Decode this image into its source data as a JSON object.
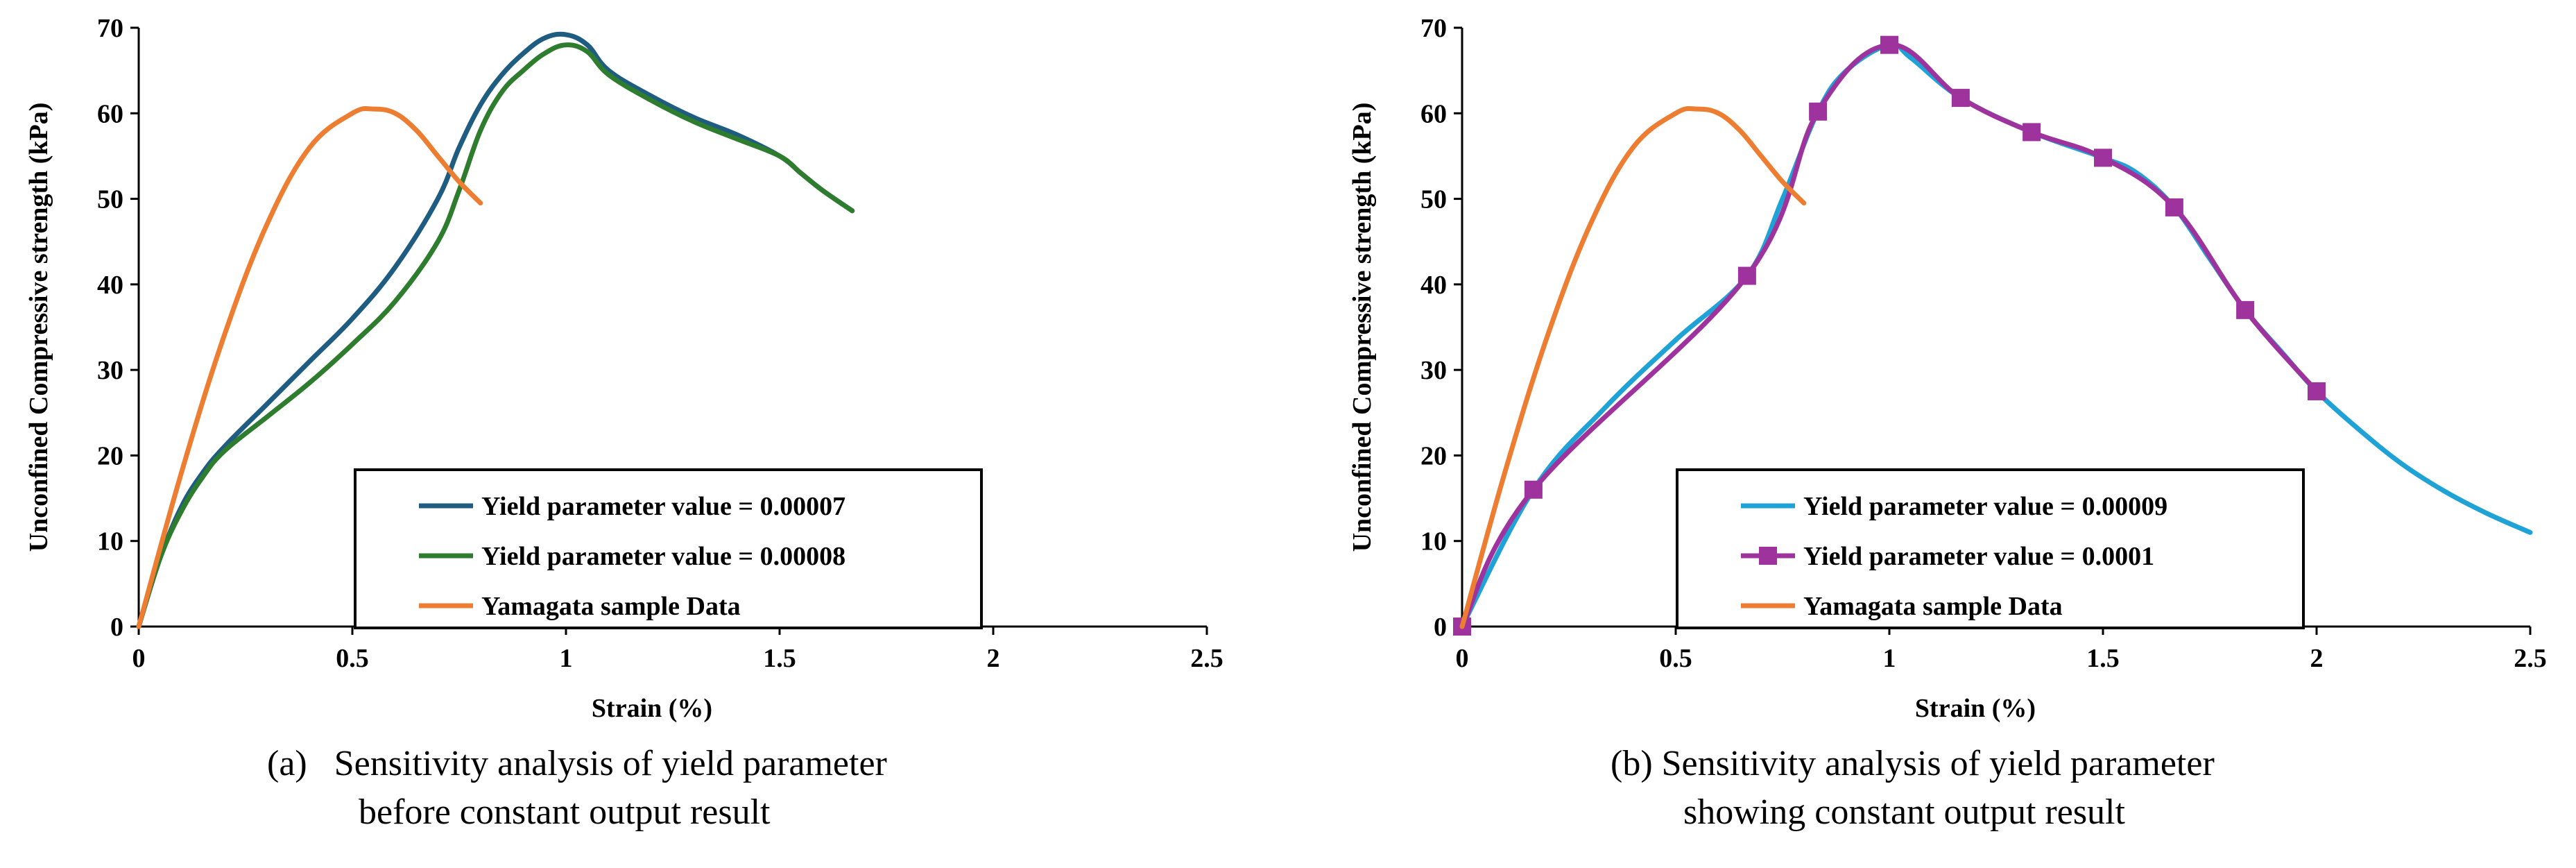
{
  "chart_data": [
    {
      "type": "line",
      "xlabel": "Strain (%)",
      "ylabel": "Unconfined Compressive strength (kPa)",
      "xlim": [
        0,
        2.5
      ],
      "ylim": [
        0,
        70
      ],
      "xticks": [
        "0",
        "0.5",
        "1",
        "1.5",
        "2",
        "2.5"
      ],
      "yticks": [
        "0",
        "10",
        "20",
        "30",
        "40",
        "50",
        "60",
        "70"
      ],
      "grid": false,
      "legend_position": "bottom-center",
      "caption_line1": "(a)   Sensitivity analysis of yield parameter",
      "caption_line2": "before constant output result",
      "series": [
        {
          "name": "Yield parameter value = 0.00007",
          "color": "#1f5c82",
          "markers": false,
          "points": [
            [
              0,
              0
            ],
            [
              0.05,
              8
            ],
            [
              0.1,
              14
            ],
            [
              0.15,
              18
            ],
            [
              0.2,
              21
            ],
            [
              0.3,
              26
            ],
            [
              0.4,
              31
            ],
            [
              0.5,
              36
            ],
            [
              0.6,
              42
            ],
            [
              0.7,
              50
            ],
            [
              0.75,
              56
            ],
            [
              0.8,
              61
            ],
            [
              0.85,
              64.5
            ],
            [
              0.9,
              67
            ],
            [
              0.95,
              68.8
            ],
            [
              1.0,
              69.2
            ],
            [
              1.05,
              68
            ],
            [
              1.1,
              65
            ],
            [
              1.2,
              62
            ],
            [
              1.3,
              59.5
            ],
            [
              1.4,
              57.5
            ],
            [
              1.5,
              55
            ],
            [
              1.55,
              53
            ],
            [
              1.6,
              51
            ],
            [
              1.67,
              48.6
            ]
          ]
        },
        {
          "name": "Yield parameter value = 0.00008",
          "color": "#2e7d2e",
          "markers": false,
          "points": [
            [
              0,
              0
            ],
            [
              0.05,
              8
            ],
            [
              0.1,
              13.5
            ],
            [
              0.15,
              17.5
            ],
            [
              0.2,
              20.5
            ],
            [
              0.3,
              24.5
            ],
            [
              0.4,
              28.5
            ],
            [
              0.5,
              33
            ],
            [
              0.6,
              38
            ],
            [
              0.7,
              45
            ],
            [
              0.75,
              51
            ],
            [
              0.8,
              58
            ],
            [
              0.85,
              62.5
            ],
            [
              0.9,
              65
            ],
            [
              0.95,
              67
            ],
            [
              1.0,
              68
            ],
            [
              1.05,
              67.2
            ],
            [
              1.1,
              64.5
            ],
            [
              1.2,
              61.5
            ],
            [
              1.3,
              59
            ],
            [
              1.4,
              57
            ],
            [
              1.5,
              55
            ],
            [
              1.55,
              53
            ],
            [
              1.6,
              51
            ],
            [
              1.67,
              48.6
            ]
          ]
        },
        {
          "name": "Yamagata sample Data",
          "color": "#ed7d31",
          "markers": false,
          "points": [
            [
              0,
              0
            ],
            [
              0.1,
              18
            ],
            [
              0.2,
              34
            ],
            [
              0.3,
              47
            ],
            [
              0.4,
              56
            ],
            [
              0.5,
              60
            ],
            [
              0.55,
              60.5
            ],
            [
              0.6,
              60
            ],
            [
              0.65,
              58
            ],
            [
              0.7,
              55
            ],
            [
              0.75,
              52
            ],
            [
              0.8,
              49.5
            ]
          ]
        }
      ]
    },
    {
      "type": "line",
      "xlabel": "Strain (%)",
      "ylabel": "Unconfined Compressive strength (kPa)",
      "xlim": [
        0,
        2.5
      ],
      "ylim": [
        0,
        70
      ],
      "xticks": [
        "0",
        "0.5",
        "1",
        "1.5",
        "2",
        "2.5"
      ],
      "yticks": [
        "0",
        "10",
        "20",
        "30",
        "40",
        "50",
        "60",
        "70"
      ],
      "grid": false,
      "legend_position": "bottom-center",
      "caption_line1": "(b) Sensitivity analysis of yield parameter",
      "caption_line2": "showing constant output result",
      "series": [
        {
          "name": "Yield parameter value = 0.00009",
          "color": "#1fa2d6",
          "markers": false,
          "points": [
            [
              0,
              0
            ],
            [
              0.167,
              16
            ],
            [
              0.333,
              25.5
            ],
            [
              0.5,
              33.5
            ],
            [
              0.667,
              41
            ],
            [
              0.75,
              50
            ],
            [
              0.833,
              60.2
            ],
            [
              0.9,
              65
            ],
            [
              1.0,
              68
            ],
            [
              1.05,
              66.5
            ],
            [
              1.167,
              61.8
            ],
            [
              1.333,
              57.8
            ],
            [
              1.5,
              54.8
            ],
            [
              1.58,
              53
            ],
            [
              1.667,
              49
            ],
            [
              1.75,
              43
            ],
            [
              1.833,
              37
            ],
            [
              1.92,
              32
            ],
            [
              2.0,
              27.5
            ],
            [
              2.1,
              23
            ],
            [
              2.2,
              19
            ],
            [
              2.3,
              15.8
            ],
            [
              2.4,
              13.2
            ],
            [
              2.5,
              11
            ]
          ]
        },
        {
          "name": "Yield parameter value = 0.0001",
          "color": "#9e339e",
          "markers": true,
          "points": [
            [
              0,
              0
            ],
            [
              0.167,
              16
            ],
            [
              0.667,
              41
            ],
            [
              0.833,
              60.2
            ],
            [
              1.0,
              68
            ],
            [
              1.167,
              61.8
            ],
            [
              1.333,
              57.8
            ],
            [
              1.5,
              54.8
            ],
            [
              1.667,
              49
            ],
            [
              1.833,
              37
            ],
            [
              2.0,
              27.5
            ]
          ]
        },
        {
          "name": "Yamagata sample Data",
          "color": "#ed7d31",
          "markers": false,
          "points": [
            [
              0,
              0
            ],
            [
              0.1,
              18
            ],
            [
              0.2,
              34
            ],
            [
              0.3,
              47
            ],
            [
              0.4,
              56
            ],
            [
              0.5,
              60
            ],
            [
              0.55,
              60.5
            ],
            [
              0.6,
              60
            ],
            [
              0.65,
              58
            ],
            [
              0.7,
              55
            ],
            [
              0.75,
              52
            ],
            [
              0.8,
              49.5
            ]
          ]
        }
      ]
    }
  ]
}
